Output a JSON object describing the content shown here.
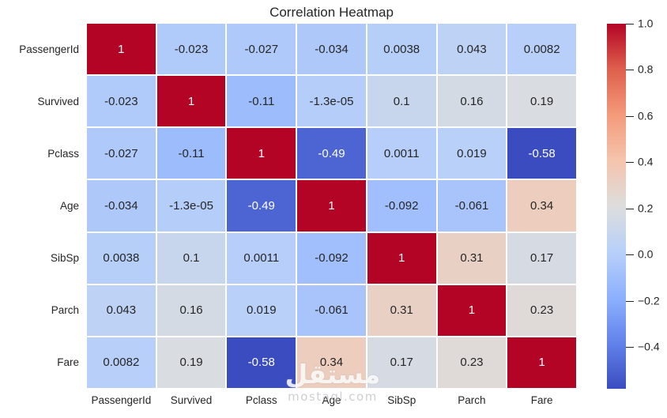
{
  "title": "Correlation Heatmap",
  "watermark": {
    "logo_text": "مستقل",
    "url_text": "mostaql.com"
  },
  "chart_data": {
    "type": "heatmap",
    "title": "Correlation Heatmap",
    "xlabel": "",
    "ylabel": "",
    "categories": [
      "PassengerId",
      "Survived",
      "Pclass",
      "Age",
      "SibSp",
      "Parch",
      "Fare"
    ],
    "values": [
      [
        1,
        -0.023,
        -0.027,
        -0.034,
        0.0038,
        0.043,
        0.0082
      ],
      [
        -0.023,
        1,
        -0.11,
        -1.3e-05,
        0.1,
        0.16,
        0.19
      ],
      [
        -0.027,
        -0.11,
        1,
        -0.49,
        0.0011,
        0.019,
        -0.58
      ],
      [
        -0.034,
        -1.3e-05,
        -0.49,
        1,
        -0.092,
        -0.061,
        0.34
      ],
      [
        0.0038,
        0.1,
        0.0011,
        -0.092,
        1,
        0.31,
        0.17
      ],
      [
        0.043,
        0.16,
        0.019,
        -0.061,
        0.31,
        1,
        0.23
      ],
      [
        0.0082,
        0.19,
        -0.58,
        0.34,
        0.17,
        0.23,
        1
      ]
    ],
    "cell_text": [
      [
        "1",
        "-0.023",
        "-0.027",
        "-0.034",
        "0.0038",
        "0.043",
        "0.0082"
      ],
      [
        "-0.023",
        "1",
        "-0.11",
        "-1.3e-05",
        "0.1",
        "0.16",
        "0.19"
      ],
      [
        "-0.027",
        "-0.11",
        "1",
        "-0.49",
        "0.0011",
        "0.019",
        "-0.58"
      ],
      [
        "-0.034",
        "-1.3e-05",
        "-0.49",
        "1",
        "-0.092",
        "-0.061",
        "0.34"
      ],
      [
        "0.0038",
        "0.1",
        "0.0011",
        "-0.092",
        "1",
        "0.31",
        "0.17"
      ],
      [
        "0.043",
        "0.16",
        "0.019",
        "-0.061",
        "0.31",
        "1",
        "0.23"
      ],
      [
        "0.0082",
        "0.19",
        "-0.58",
        "0.34",
        "0.17",
        "0.23",
        "1"
      ]
    ],
    "vmin": -0.58,
    "vmax": 1.0,
    "colormap": "coolwarm",
    "colormap_stops": [
      [
        0.0,
        "#3B4CC0"
      ],
      [
        0.125,
        "#6282EA"
      ],
      [
        0.25,
        "#8DB0FE"
      ],
      [
        0.375,
        "#B8D0F9"
      ],
      [
        0.5,
        "#DDDDDD"
      ],
      [
        0.625,
        "#F5C4AD"
      ],
      [
        0.75,
        "#F49A7B"
      ],
      [
        0.875,
        "#DE604D"
      ],
      [
        1.0,
        "#B40426"
      ]
    ],
    "text_color_dark": "#262626",
    "text_color_light": "#FFFFFF",
    "legend_position": "right-colorbar",
    "grid_line_color": "#FFFFFF",
    "colorbar_ticks": [
      {
        "v": 1.0,
        "label": "1.0"
      },
      {
        "v": 0.8,
        "label": "0.8"
      },
      {
        "v": 0.6,
        "label": "0.6"
      },
      {
        "v": 0.4,
        "label": "0.4"
      },
      {
        "v": 0.2,
        "label": "0.2"
      },
      {
        "v": 0.0,
        "label": "0.0"
      },
      {
        "v": -0.2,
        "label": "−0.2"
      },
      {
        "v": -0.4,
        "label": "−0.4"
      }
    ]
  }
}
